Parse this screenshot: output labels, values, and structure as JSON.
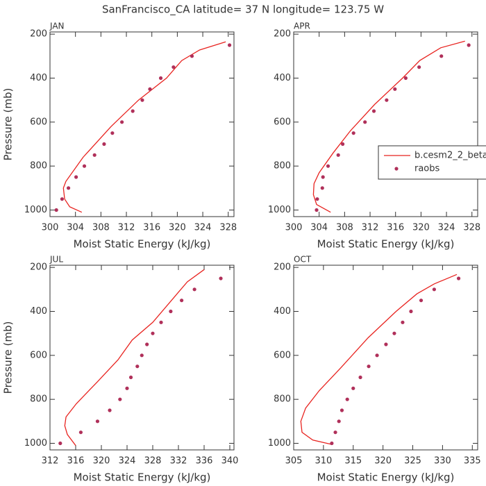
{
  "title": "SanFrancisco_CA  latitude= 37 N longitude= 123.75 W",
  "chart_data": [
    {
      "type": "line",
      "title": "JAN",
      "xlabel": "Moist Static Energy (kJ/kg)",
      "ylabel": "Pressure (mb)",
      "xlim": [
        300,
        328.9
      ],
      "xticks": [
        300,
        304,
        308,
        312,
        316,
        320,
        324,
        328
      ],
      "ylim": [
        1030,
        190
      ],
      "yticks": [
        200,
        400,
        600,
        800,
        1000
      ],
      "series": [
        {
          "name": "b.cesm2_2_beta",
          "color": "#e8231f",
          "marker": false,
          "x": [
            327.6,
            323.5,
            320.7,
            318.3,
            313.9,
            309.6,
            305.2,
            302.5,
            302.1,
            302.3,
            303.1,
            305.0
          ],
          "y": [
            235,
            272,
            320,
            400,
            500,
            620,
            760,
            870,
            900,
            950,
            985,
            1010
          ]
        },
        {
          "name": "raobs",
          "color": "#b0305a",
          "marker": true,
          "x": [
            328.2,
            322.3,
            319.4,
            317.4,
            315.7,
            314.5,
            313.0,
            311.3,
            309.8,
            308.5,
            307.0,
            305.4,
            304.1,
            302.9,
            301.9,
            301.0
          ],
          "y": [
            250,
            300,
            350,
            400,
            450,
            500,
            550,
            600,
            650,
            700,
            750,
            800,
            850,
            900,
            950,
            1000
          ]
        }
      ]
    },
    {
      "type": "line",
      "title": "APR",
      "xlabel": "Moist Static Energy (kJ/kg)",
      "legend": "right",
      "xlim": [
        300,
        328.9
      ],
      "xticks": [
        300,
        304,
        308,
        312,
        316,
        320,
        324,
        328
      ],
      "ylim": [
        1030,
        190
      ],
      "yticks": [
        200,
        400,
        600,
        800,
        1000
      ],
      "series": [
        {
          "name": "b.cesm2_2_beta",
          "color": "#e8231f",
          "marker": false,
          "x": [
            326.9,
            323.1,
            319.8,
            317.1,
            312.7,
            308.9,
            306.2,
            304.0,
            303.2,
            303.1,
            303.6,
            305.8
          ],
          "y": [
            232,
            262,
            320,
            400,
            520,
            640,
            740,
            830,
            880,
            930,
            975,
            1010
          ]
        },
        {
          "name": "raobs",
          "color": "#b0305a",
          "marker": true,
          "x": [
            327.5,
            323.2,
            319.7,
            317.6,
            315.9,
            314.6,
            312.6,
            311.2,
            309.4,
            307.7,
            307.0,
            305.4,
            304.6,
            304.5,
            303.7,
            303.6
          ],
          "y": [
            250,
            300,
            350,
            400,
            450,
            500,
            550,
            600,
            650,
            700,
            750,
            800,
            850,
            900,
            950,
            1000
          ]
        }
      ]
    },
    {
      "type": "line",
      "title": "JUL",
      "xlabel": "Moist Static Energy (kJ/kg)",
      "ylabel": "Pressure (mb)",
      "xlim": [
        312,
        340.65
      ],
      "xticks": [
        312,
        316,
        320,
        324,
        328,
        332,
        336,
        340
      ],
      "ylim": [
        1030,
        190
      ],
      "yticks": [
        200,
        400,
        600,
        800,
        1000
      ],
      "series": [
        {
          "name": "b.cesm2_2_beta",
          "color": "#e8231f",
          "marker": false,
          "x": [
            336.0,
            333.4,
            331.5,
            328.0,
            324.8,
            322.6,
            319.4,
            316.1,
            314.5,
            314.3,
            314.7,
            316.0
          ],
          "y": [
            210,
            265,
            330,
            450,
            530,
            620,
            720,
            820,
            880,
            920,
            960,
            1010
          ]
        },
        {
          "name": "raobs",
          "color": "#b0305a",
          "marker": true,
          "x": [
            338.6,
            334.5,
            332.5,
            330.8,
            329.3,
            328.0,
            327.1,
            326.3,
            325.6,
            324.6,
            324.0,
            322.9,
            321.3,
            319.4,
            316.8,
            313.6
          ],
          "y": [
            250,
            300,
            350,
            400,
            450,
            500,
            550,
            600,
            650,
            700,
            750,
            800,
            850,
            900,
            950,
            1000
          ]
        }
      ]
    },
    {
      "type": "line",
      "title": "OCT",
      "xlabel": "Moist Static Energy (kJ/kg)",
      "xlim": [
        305,
        335.9
      ],
      "xticks": [
        305,
        310,
        315,
        320,
        325,
        330,
        335
      ],
      "ylim": [
        1030,
        190
      ],
      "yticks": [
        200,
        400,
        600,
        800,
        1000
      ],
      "series": [
        {
          "name": "b.cesm2_2_beta",
          "color": "#e8231f",
          "marker": false,
          "x": [
            332.4,
            328.6,
            325.7,
            322.2,
            317.5,
            312.8,
            309.3,
            307.0,
            306.2,
            306.4,
            308.2,
            311.4
          ],
          "y": [
            232,
            275,
            320,
            400,
            520,
            660,
            760,
            840,
            900,
            950,
            985,
            1005
          ]
        },
        {
          "name": "raobs",
          "color": "#b0305a",
          "marker": true,
          "x": [
            332.7,
            328.6,
            326.4,
            324.7,
            323.3,
            321.9,
            320.5,
            319.0,
            317.6,
            316.2,
            315.0,
            314.0,
            313.1,
            312.6,
            312.0,
            311.4
          ],
          "y": [
            250,
            300,
            350,
            400,
            450,
            500,
            550,
            600,
            650,
            700,
            750,
            800,
            850,
            900,
            950,
            1000
          ]
        }
      ]
    }
  ]
}
